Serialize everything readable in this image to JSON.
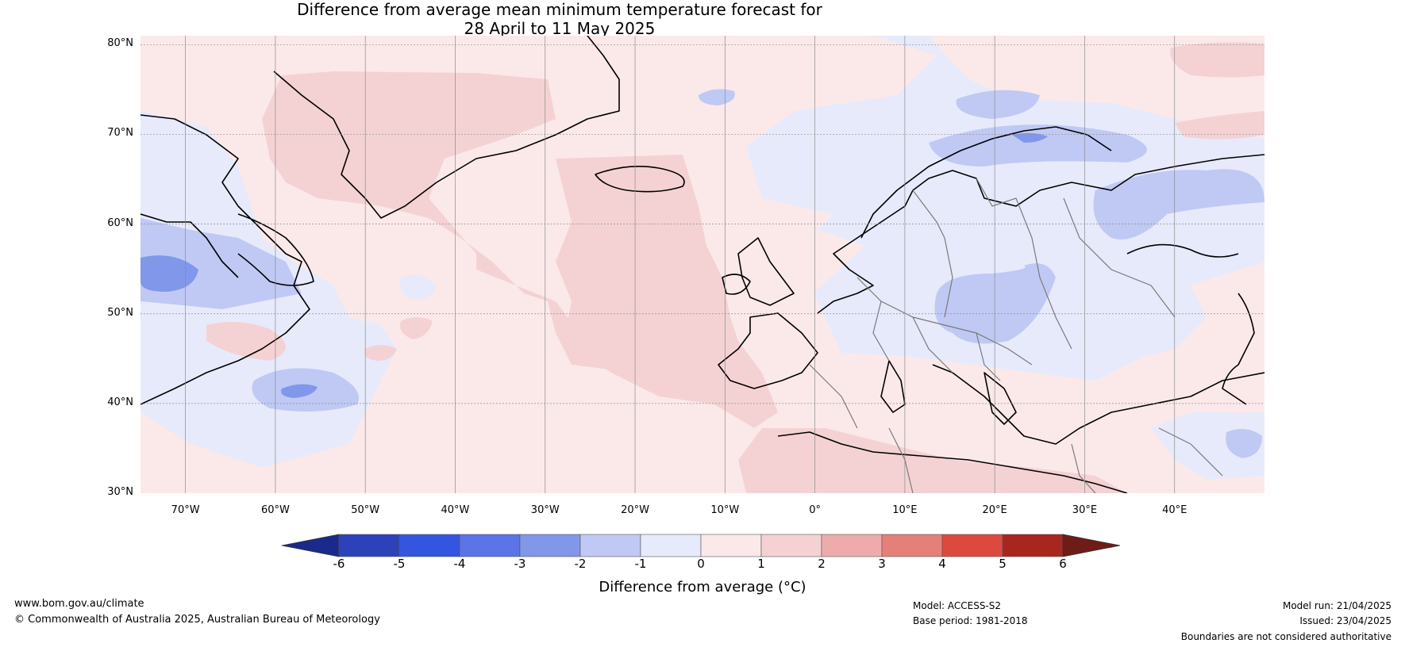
{
  "title_line1": "Difference from average mean minimum temperature forecast for",
  "title_line2": "28 April to 11 May 2025",
  "lat_labels": [
    "80°N",
    "70°N",
    "60°N",
    "50°N",
    "40°N",
    "30°N"
  ],
  "lon_labels": [
    "70°W",
    "60°W",
    "50°W",
    "40°W",
    "30°W",
    "20°W",
    "10°W",
    "0°",
    "10°E",
    "20°E",
    "30°E",
    "40°E"
  ],
  "colorbar": {
    "ticks": [
      "-6",
      "-5",
      "-4",
      "-3",
      "-2",
      "-1",
      "0",
      "1",
      "2",
      "3",
      "4",
      "5",
      "6"
    ],
    "colors": [
      "#1a2a8c",
      "#2b42b8",
      "#3355e0",
      "#5b74e8",
      "#8197ea",
      "#c0c9f4",
      "#e6eafb",
      "#fbe9e9",
      "#f4d2d3",
      "#edacab",
      "#e58079",
      "#dc4a3e",
      "#a9261f",
      "#6e1c18"
    ],
    "label": "Difference from average (°C)"
  },
  "footer": {
    "url": "www.bom.gov.au/climate",
    "copyright": "© Commonwealth of Australia 2025, Australian Bureau of Meteorology",
    "model": "Model: ACCESS-S2",
    "base_period": "Base period: 1981-2018",
    "model_run": "Model run: 21/04/2025",
    "issued": "Issued: 23/04/2025",
    "disclaimer": "Boundaries are not considered authoritative"
  }
}
